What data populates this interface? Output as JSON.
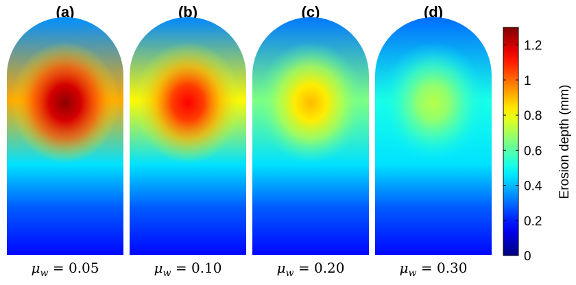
{
  "chart_data": {
    "type": "heatmap",
    "colormap": "jet",
    "panels": [
      {
        "label": "(a)",
        "mu_symbol": "μ",
        "mu_subscript": "w",
        "mu_value": "0.05",
        "peak": 1.28
      },
      {
        "label": "(b)",
        "mu_symbol": "μ",
        "mu_subscript": "w",
        "mu_value": "0.10",
        "peak": 1.14
      },
      {
        "label": "(c)",
        "mu_symbol": "μ",
        "mu_subscript": "w",
        "mu_value": "0.20",
        "peak": 0.9
      },
      {
        "label": "(d)",
        "mu_symbol": "μ",
        "mu_subscript": "w",
        "mu_value": "0.30",
        "peak": 0.72
      }
    ],
    "colorbar": {
      "label": "Erosion depth (mm)",
      "range": [
        0,
        1.3
      ],
      "ticks": [
        0,
        0.2,
        0.4,
        0.6,
        0.8,
        1,
        1.2
      ],
      "tick_labels": [
        "0",
        "0.2",
        "0.4",
        "0.6",
        "0.8",
        "1",
        "1.2"
      ]
    }
  }
}
